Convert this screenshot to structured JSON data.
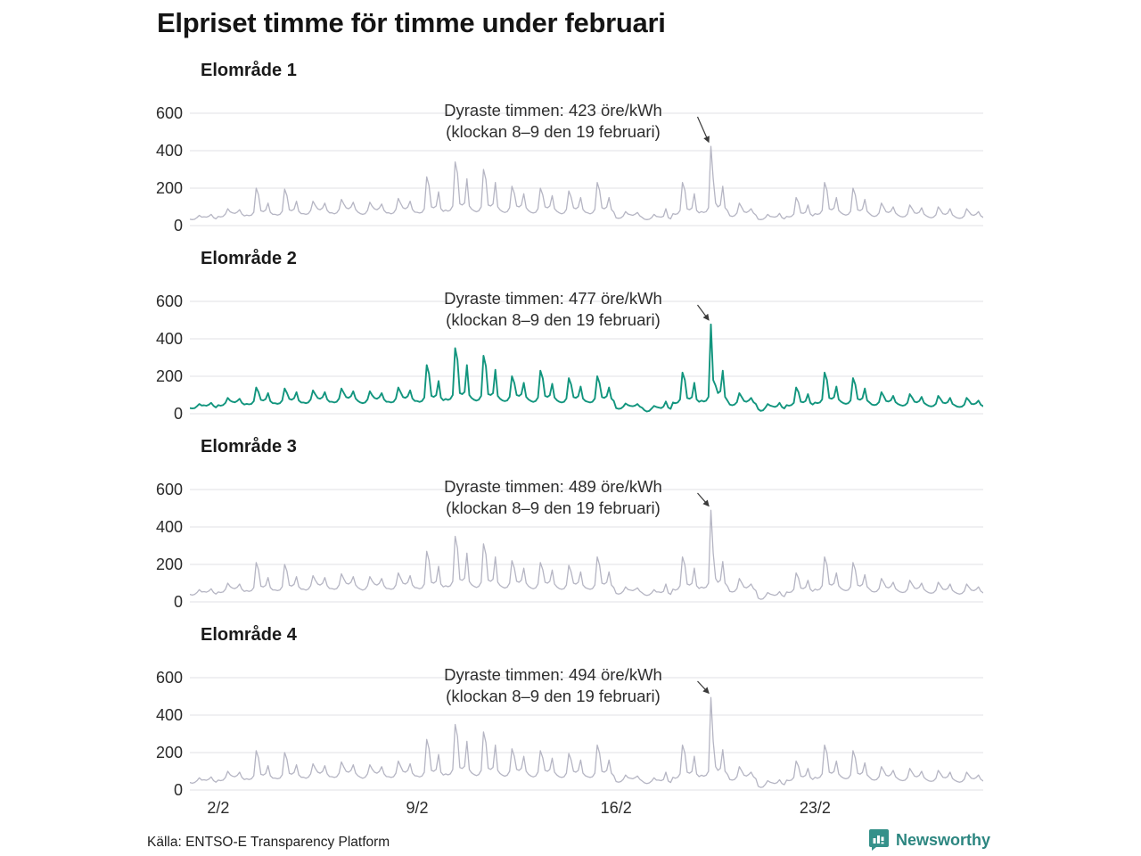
{
  "title": "Elpriset timme för timme under februari",
  "footer": {
    "source": "Källa: ENTSO-E Transparency Platform",
    "brand": "Newsworthy"
  },
  "colors": {
    "line_default": "#b5b5c3",
    "line_highlight": "#12957e",
    "grid": "#e1e1e5",
    "arrow": "#3a3a3a",
    "brand_teal": "#35918a"
  },
  "axis": {
    "y_ticks": [
      600,
      400,
      200,
      0
    ],
    "x_ticks": [
      {
        "label": "2/2",
        "index": 12
      },
      {
        "label": "9/2",
        "index": 96
      },
      {
        "label": "16/2",
        "index": 180
      },
      {
        "label": "23/2",
        "index": 264
      }
    ]
  },
  "chart_data": [
    {
      "type": "line",
      "name": "Elområde 1",
      "unit": "öre/kWh",
      "x_range": [
        "1/2",
        "28/2"
      ],
      "sampling": "varannan timme (2h)",
      "max_value": 423,
      "annotation": {
        "line1": "Dyraste timmen: 423 öre/kWh",
        "line2": "(klockan 8–9 den 19 februari)"
      },
      "color": "#b5b5c3",
      "stroke_width": 1.3,
      "ylim": [
        0,
        650
      ],
      "values": [
        34,
        32,
        34,
        43,
        55,
        45,
        47,
        45,
        50,
        60,
        43,
        36,
        49,
        46,
        49,
        62,
        90,
        74,
        68,
        65,
        72,
        85,
        62,
        52,
        56,
        53,
        56,
        71,
        200,
        164,
        79,
        75,
        83,
        120,
        71,
        60,
        60,
        56,
        60,
        76,
        195,
        160,
        84,
        80,
        88,
        130,
        76,
        64,
        64,
        60,
        64,
        81,
        130,
        107,
        89,
        85,
        94,
        120,
        81,
        68,
        68,
        63,
        68,
        86,
        140,
        115,
        95,
        90,
        99,
        125,
        86,
        72,
        64,
        60,
        64,
        81,
        125,
        103,
        89,
        85,
        94,
        115,
        81,
        68,
        68,
        63,
        68,
        86,
        145,
        119,
        95,
        90,
        99,
        130,
        86,
        72,
        71,
        67,
        71,
        90,
        260,
        213,
        100,
        95,
        105,
        180,
        90,
        76,
        83,
        77,
        83,
        105,
        340,
        279,
        116,
        110,
        121,
        250,
        105,
        88,
        79,
        74,
        79,
        100,
        300,
        246,
        110,
        105,
        116,
        230,
        100,
        84,
        75,
        70,
        75,
        95,
        210,
        172,
        105,
        100,
        110,
        170,
        95,
        80,
        71,
        67,
        71,
        90,
        200,
        164,
        100,
        95,
        105,
        160,
        90,
        76,
        68,
        63,
        68,
        86,
        185,
        152,
        95,
        90,
        99,
        150,
        86,
        72,
        68,
        63,
        68,
        86,
        230,
        189,
        95,
        90,
        99,
        150,
        86,
        72,
        41,
        39,
        41,
        52,
        75,
        62,
        58,
        55,
        61,
        70,
        52,
        44,
        34,
        32,
        34,
        43,
        60,
        49,
        47,
        45,
        50,
        90,
        43,
        36,
        64,
        60,
        64,
        81,
        230,
        189,
        89,
        85,
        94,
        170,
        81,
        68,
        75,
        70,
        75,
        95,
        423,
        250,
        120,
        100,
        110,
        210,
        95,
        80,
        53,
        49,
        53,
        67,
        120,
        98,
        74,
        70,
        77,
        90,
        67,
        56,
        34,
        32,
        34,
        43,
        60,
        49,
        47,
        45,
        50,
        65,
        43,
        36,
        49,
        46,
        49,
        62,
        150,
        123,
        68,
        65,
        72,
        110,
        62,
        52,
        64,
        60,
        64,
        81,
        230,
        189,
        89,
        85,
        94,
        150,
        81,
        68,
        60,
        56,
        60,
        76,
        200,
        164,
        84,
        80,
        88,
        140,
        76,
        64,
        53,
        49,
        53,
        67,
        120,
        98,
        74,
        70,
        77,
        100,
        67,
        56,
        49,
        46,
        49,
        62,
        110,
        90,
        68,
        65,
        72,
        95,
        62,
        52,
        45,
        42,
        45,
        57,
        100,
        82,
        63,
        60,
        66,
        90,
        57,
        48,
        41,
        39,
        41,
        52,
        90,
        74,
        58,
        55,
        61,
        75,
        52,
        44
      ]
    },
    {
      "type": "line",
      "name": "Elområde 2",
      "unit": "öre/kWh",
      "x_range": [
        "1/2",
        "28/2"
      ],
      "sampling": "varannan timme (2h)",
      "max_value": 477,
      "annotation": {
        "line1": "Dyraste timmen: 477 öre/kWh",
        "line2": "(klockan 8–9 den 19 februari)"
      },
      "color": "#12957e",
      "stroke_width": 1.9,
      "ylim": [
        0,
        650
      ],
      "values": [
        30,
        28,
        30,
        40,
        52,
        44,
        45,
        43,
        48,
        58,
        42,
        34,
        46,
        43,
        46,
        58,
        85,
        70,
        64,
        61,
        68,
        80,
        58,
        49,
        53,
        50,
        53,
        67,
        140,
        115,
        74,
        71,
        78,
        110,
        67,
        56,
        56,
        53,
        56,
        71,
        135,
        111,
        79,
        75,
        83,
        115,
        71,
        60,
        60,
        56,
        60,
        76,
        125,
        103,
        84,
        80,
        88,
        115,
        76,
        64,
        64,
        60,
        64,
        81,
        135,
        111,
        89,
        85,
        94,
        120,
        81,
        68,
        60,
        56,
        60,
        76,
        120,
        98,
        84,
        80,
        88,
        110,
        76,
        64,
        64,
        60,
        64,
        81,
        140,
        115,
        89,
        85,
        94,
        125,
        81,
        68,
        68,
        63,
        68,
        86,
        260,
        213,
        95,
        90,
        99,
        175,
        86,
        72,
        79,
        74,
        79,
        100,
        350,
        287,
        110,
        105,
        116,
        260,
        100,
        84,
        75,
        70,
        75,
        95,
        310,
        254,
        105,
        100,
        110,
        235,
        95,
        80,
        71,
        67,
        71,
        90,
        200,
        164,
        100,
        95,
        105,
        165,
        90,
        76,
        68,
        63,
        68,
        86,
        230,
        189,
        95,
        90,
        99,
        160,
        86,
        72,
        64,
        60,
        64,
        81,
        190,
        156,
        89,
        85,
        94,
        145,
        81,
        68,
        64,
        60,
        64,
        81,
        200,
        164,
        89,
        85,
        94,
        140,
        81,
        68,
        30,
        26,
        28,
        38,
        55,
        46,
        42,
        40,
        44,
        52,
        38,
        32,
        18,
        12,
        15,
        28,
        42,
        36,
        33,
        30,
        38,
        65,
        33,
        26,
        60,
        56,
        60,
        76,
        220,
        180,
        84,
        80,
        88,
        165,
        76,
        64,
        70,
        65,
        70,
        90,
        477,
        180,
        150,
        110,
        120,
        230,
        90,
        70,
        49,
        45,
        49,
        62,
        110,
        90,
        68,
        64,
        71,
        85,
        62,
        52,
        25,
        15,
        18,
        33,
        52,
        44,
        40,
        36,
        42,
        58,
        36,
        28,
        46,
        43,
        46,
        58,
        140,
        115,
        64,
        61,
        68,
        105,
        58,
        49,
        60,
        56,
        60,
        76,
        220,
        180,
        84,
        80,
        88,
        145,
        76,
        64,
        56,
        53,
        56,
        71,
        190,
        156,
        79,
        75,
        83,
        135,
        71,
        60,
        49,
        46,
        49,
        62,
        115,
        94,
        68,
        65,
        72,
        95,
        62,
        52,
        46,
        43,
        46,
        58,
        105,
        86,
        64,
        61,
        68,
        90,
        58,
        49,
        42,
        39,
        42,
        53,
        95,
        78,
        59,
        56,
        62,
        85,
        53,
        45,
        38,
        36,
        38,
        48,
        85,
        70,
        53,
        51,
        56,
        70,
        48,
        40
      ]
    },
    {
      "type": "line",
      "name": "Elområde 3",
      "unit": "öre/kWh",
      "x_range": [
        "1/2",
        "28/2"
      ],
      "sampling": "varannan timme (2h)",
      "max_value": 489,
      "annotation": {
        "line1": "Dyraste timmen: 489 öre/kWh",
        "line2": "(klockan 8–9 den 19 februari)"
      },
      "color": "#b5b5c3",
      "stroke_width": 1.3,
      "ylim": [
        0,
        650
      ],
      "values": [
        40,
        36,
        40,
        50,
        65,
        53,
        55,
        52,
        58,
        70,
        50,
        42,
        53,
        50,
        53,
        67,
        100,
        82,
        74,
        71,
        78,
        95,
        67,
        56,
        60,
        56,
        60,
        76,
        210,
        172,
        84,
        80,
        88,
        130,
        76,
        64,
        64,
        60,
        64,
        81,
        200,
        164,
        89,
        85,
        94,
        135,
        81,
        68,
        68,
        63,
        68,
        86,
        140,
        115,
        95,
        90,
        99,
        130,
        86,
        72,
        71,
        67,
        71,
        90,
        150,
        123,
        100,
        95,
        105,
        135,
        90,
        76,
        68,
        63,
        68,
        86,
        135,
        111,
        95,
        90,
        99,
        125,
        86,
        72,
        71,
        67,
        71,
        90,
        155,
        127,
        100,
        95,
        105,
        140,
        90,
        76,
        75,
        70,
        75,
        95,
        270,
        221,
        105,
        100,
        110,
        190,
        95,
        80,
        86,
        81,
        86,
        109,
        350,
        287,
        120,
        115,
        127,
        260,
        109,
        92,
        83,
        77,
        83,
        105,
        310,
        254,
        116,
        110,
        121,
        240,
        105,
        88,
        79,
        74,
        79,
        100,
        220,
        180,
        110,
        105,
        116,
        180,
        100,
        84,
        75,
        70,
        75,
        95,
        210,
        172,
        105,
        100,
        110,
        170,
        95,
        80,
        71,
        67,
        71,
        90,
        195,
        160,
        100,
        95,
        105,
        160,
        90,
        76,
        71,
        67,
        71,
        90,
        240,
        197,
        100,
        95,
        105,
        160,
        90,
        76,
        45,
        42,
        45,
        57,
        80,
        66,
        63,
        60,
        66,
        75,
        57,
        48,
        38,
        35,
        38,
        48,
        65,
        53,
        53,
        50,
        56,
        95,
        48,
        40,
        68,
        63,
        68,
        86,
        240,
        197,
        95,
        90,
        99,
        180,
        86,
        72,
        79,
        74,
        79,
        100,
        489,
        260,
        125,
        105,
        115,
        215,
        100,
        84,
        56,
        53,
        56,
        71,
        125,
        103,
        79,
        75,
        83,
        95,
        71,
        60,
        20,
        14,
        16,
        30,
        50,
        42,
        38,
        35,
        40,
        55,
        35,
        28,
        53,
        50,
        53,
        67,
        155,
        127,
        74,
        71,
        78,
        115,
        67,
        56,
        68,
        63,
        68,
        86,
        240,
        197,
        95,
        90,
        99,
        155,
        86,
        72,
        64,
        60,
        64,
        81,
        210,
        172,
        89,
        85,
        94,
        145,
        81,
        68,
        56,
        53,
        56,
        71,
        125,
        103,
        79,
        75,
        83,
        105,
        71,
        60,
        53,
        50,
        53,
        67,
        115,
        94,
        74,
        71,
        78,
        100,
        67,
        56,
        49,
        46,
        49,
        62,
        105,
        86,
        68,
        65,
        72,
        95,
        62,
        52,
        45,
        42,
        45,
        57,
        95,
        78,
        63,
        60,
        66,
        80,
        57,
        48
      ]
    },
    {
      "type": "line",
      "name": "Elområde 4",
      "unit": "öre/kWh",
      "x_range": [
        "1/2",
        "28/2"
      ],
      "sampling": "varannan timme (2h)",
      "max_value": 494,
      "annotation": {
        "line1": "Dyraste timmen: 494 öre/kWh",
        "line2": "(klockan 8–9 den 19 februari)"
      },
      "color": "#b5b5c3",
      "stroke_width": 1.3,
      "ylim": [
        0,
        650
      ],
      "values": [
        40,
        36,
        40,
        50,
        65,
        53,
        55,
        52,
        58,
        70,
        50,
        42,
        53,
        50,
        53,
        67,
        100,
        82,
        74,
        71,
        78,
        95,
        67,
        56,
        60,
        56,
        60,
        76,
        210,
        172,
        84,
        80,
        88,
        130,
        76,
        64,
        64,
        60,
        64,
        81,
        200,
        164,
        89,
        85,
        94,
        135,
        81,
        68,
        68,
        63,
        68,
        86,
        140,
        115,
        95,
        90,
        99,
        130,
        86,
        72,
        71,
        67,
        71,
        90,
        150,
        123,
        100,
        95,
        105,
        135,
        90,
        76,
        68,
        63,
        68,
        86,
        135,
        111,
        95,
        90,
        99,
        125,
        86,
        72,
        71,
        67,
        71,
        90,
        155,
        127,
        100,
        95,
        105,
        140,
        90,
        76,
        75,
        70,
        75,
        95,
        270,
        221,
        105,
        100,
        110,
        190,
        95,
        80,
        86,
        81,
        86,
        109,
        350,
        287,
        120,
        115,
        127,
        260,
        109,
        92,
        83,
        77,
        83,
        105,
        310,
        254,
        116,
        110,
        121,
        240,
        105,
        88,
        79,
        74,
        79,
        100,
        220,
        180,
        110,
        105,
        116,
        180,
        100,
        84,
        75,
        70,
        75,
        95,
        210,
        172,
        105,
        100,
        110,
        170,
        95,
        80,
        71,
        67,
        71,
        90,
        195,
        160,
        100,
        95,
        105,
        160,
        90,
        76,
        71,
        67,
        71,
        90,
        240,
        197,
        100,
        95,
        105,
        160,
        90,
        76,
        45,
        42,
        45,
        57,
        80,
        66,
        63,
        60,
        66,
        75,
        57,
        48,
        38,
        35,
        38,
        48,
        65,
        53,
        53,
        50,
        56,
        95,
        48,
        40,
        68,
        63,
        68,
        86,
        240,
        197,
        95,
        90,
        99,
        180,
        86,
        72,
        79,
        74,
        79,
        100,
        494,
        260,
        125,
        105,
        115,
        215,
        100,
        84,
        56,
        53,
        56,
        71,
        125,
        103,
        79,
        75,
        83,
        95,
        71,
        60,
        20,
        14,
        16,
        30,
        50,
        42,
        38,
        35,
        40,
        55,
        35,
        28,
        53,
        50,
        53,
        67,
        155,
        127,
        74,
        71,
        78,
        115,
        67,
        56,
        68,
        63,
        68,
        86,
        240,
        197,
        95,
        90,
        99,
        155,
        86,
        72,
        64,
        60,
        64,
        81,
        210,
        172,
        89,
        85,
        94,
        145,
        81,
        68,
        56,
        53,
        56,
        71,
        125,
        103,
        79,
        75,
        83,
        105,
        71,
        60,
        53,
        50,
        53,
        67,
        115,
        94,
        74,
        71,
        78,
        100,
        67,
        56,
        49,
        46,
        49,
        62,
        105,
        86,
        68,
        65,
        72,
        95,
        62,
        52,
        45,
        42,
        45,
        57,
        95,
        78,
        63,
        60,
        66,
        80,
        57,
        48
      ]
    }
  ]
}
